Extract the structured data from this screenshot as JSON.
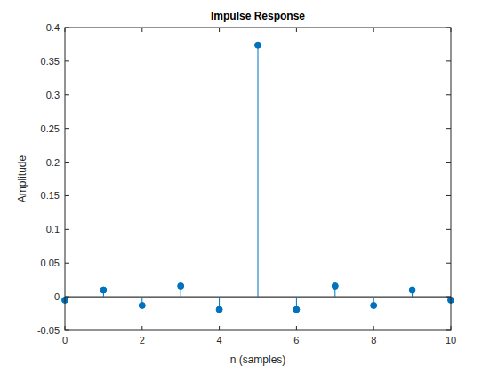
{
  "chart_data": {
    "type": "stem",
    "title": "Impulse Response",
    "x_label": "n (samples)",
    "y_label": "Amplitude",
    "x": [
      0,
      1,
      2,
      3,
      4,
      5,
      6,
      7,
      8,
      9,
      10
    ],
    "values": [
      -0.005,
      0.01,
      -0.013,
      0.016,
      -0.019,
      0.374,
      -0.019,
      0.016,
      -0.013,
      0.01,
      -0.005
    ],
    "color": "#0072bd",
    "marker": "circle",
    "grid": false,
    "xlim": [
      0,
      10
    ],
    "xticks": [
      0,
      2,
      4,
      6,
      8,
      10
    ],
    "ylim": [
      -0.05,
      0.4
    ],
    "yticks": [
      -0.05,
      0,
      0.05,
      0.1,
      0.15,
      0.2,
      0.25,
      0.3,
      0.35,
      0.4
    ]
  }
}
